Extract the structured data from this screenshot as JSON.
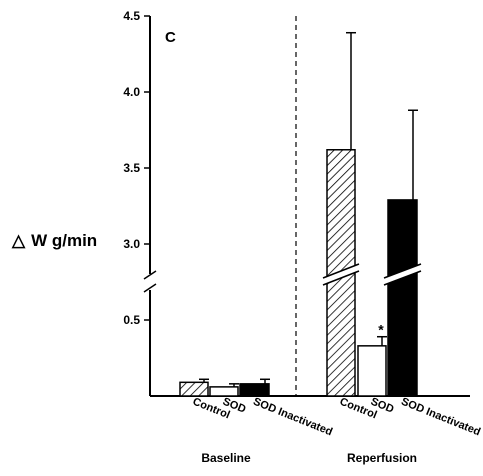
{
  "chart_data": {
    "type": "bar",
    "panel_label": "C",
    "ylabel_symbol": "△",
    "ylabel": "W g/min",
    "y_axis": {
      "ticks": [
        "0.5",
        "3.0",
        "3.5",
        "4.0",
        "4.5"
      ],
      "broken": true,
      "lower_range": [
        0,
        0.5
      ],
      "upper_range": [
        2.75,
        4.5
      ]
    },
    "categories": [
      "Control",
      "SOD",
      "SOD Inactivated"
    ],
    "groups": [
      {
        "name": "Baseline",
        "bars": [
          {
            "category": "Control",
            "value": 0.09,
            "error": 0.02,
            "pattern": "hatched"
          },
          {
            "category": "SOD",
            "value": 0.06,
            "error": 0.02,
            "pattern": "open"
          },
          {
            "category": "SOD Inactivated",
            "value": 0.08,
            "error": 0.03,
            "pattern": "solid"
          }
        ]
      },
      {
        "name": "Reperfusion",
        "bars": [
          {
            "category": "Control",
            "value": 3.62,
            "error": 0.77,
            "pattern": "hatched"
          },
          {
            "category": "SOD",
            "value": 0.33,
            "error": 0.06,
            "pattern": "open",
            "annotation": "*"
          },
          {
            "category": "SOD Inactivated",
            "value": 3.29,
            "error": 0.59,
            "pattern": "solid"
          }
        ]
      }
    ],
    "legend": "none",
    "grid": false
  }
}
